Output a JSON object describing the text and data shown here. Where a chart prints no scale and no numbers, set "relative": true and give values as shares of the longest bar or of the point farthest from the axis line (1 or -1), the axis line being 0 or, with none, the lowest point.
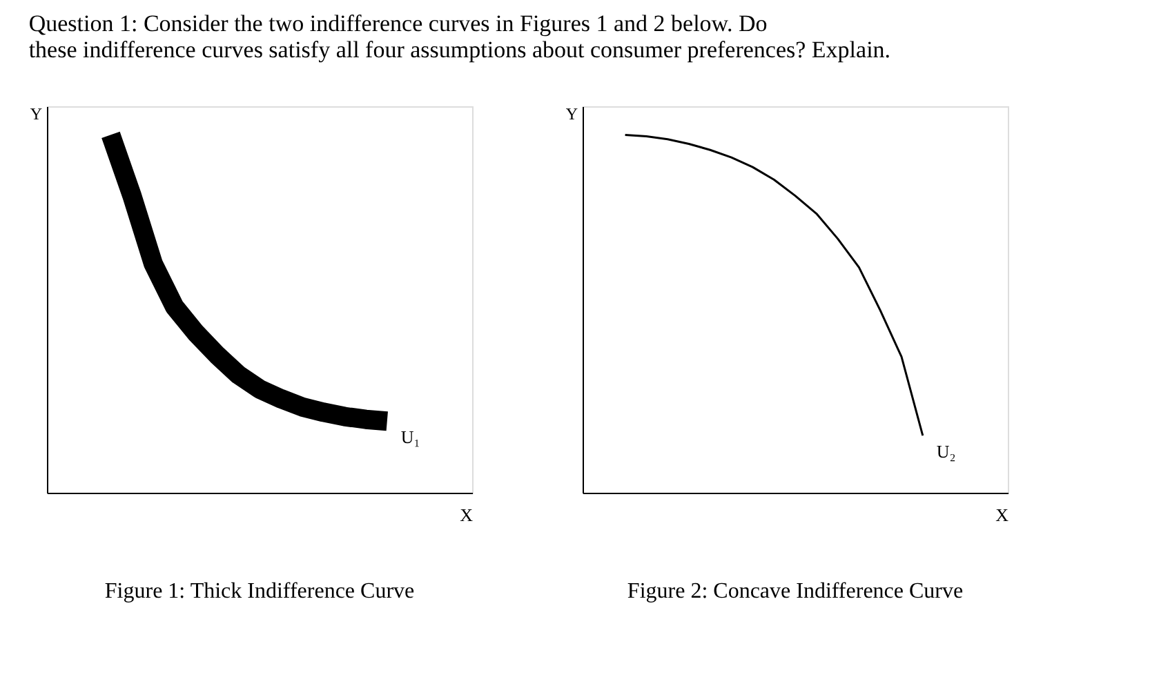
{
  "chart_data": [
    {
      "type": "line",
      "relative": true,
      "title": "Figure 1: Thick Indifference Curve",
      "xlabel": "X",
      "ylabel": "Y",
      "annotations": [
        "Question 1: Consider the two indifference curves in Figures 1 and 2 below. Do these indifference curves satisfy all four assumptions about consumer preferences? Explain."
      ],
      "categories": [
        null,
        null,
        null,
        null,
        null,
        null,
        null,
        null,
        null,
        null,
        null,
        null,
        null,
        null,
        null,
        null,
        null,
        null,
        null,
        null,
        null
      ],
      "series": [
        {
          "name": "U₁",
          "color": "#000000",
          "values": [
            null,
            null,
            null,
            1.0,
            0.83,
            0.64,
            0.52,
            0.447,
            0.385,
            0.33,
            0.29,
            0.263,
            0.24,
            0.225,
            0.213,
            0.205,
            0.2,
            null,
            null,
            null,
            null
          ]
        }
      ]
    },
    {
      "type": "line",
      "relative": true,
      "title": "Figure 2: Concave Indifference Curve",
      "xlabel": "X",
      "ylabel": "Y",
      "categories": [
        null,
        null,
        null,
        null,
        null,
        null,
        null,
        null,
        null,
        null,
        null,
        null,
        null,
        null,
        null,
        null,
        null,
        null,
        null,
        null,
        null
      ],
      "series": [
        {
          "name": "U₂",
          "color": "#000000",
          "values": [
            null,
            null,
            1.0,
            0.996,
            0.988,
            0.975,
            0.958,
            0.937,
            0.91,
            0.875,
            0.83,
            0.78,
            0.71,
            0.63,
            0.51,
            0.38,
            0.16,
            null,
            null,
            null,
            null
          ]
        }
      ]
    }
  ]
}
